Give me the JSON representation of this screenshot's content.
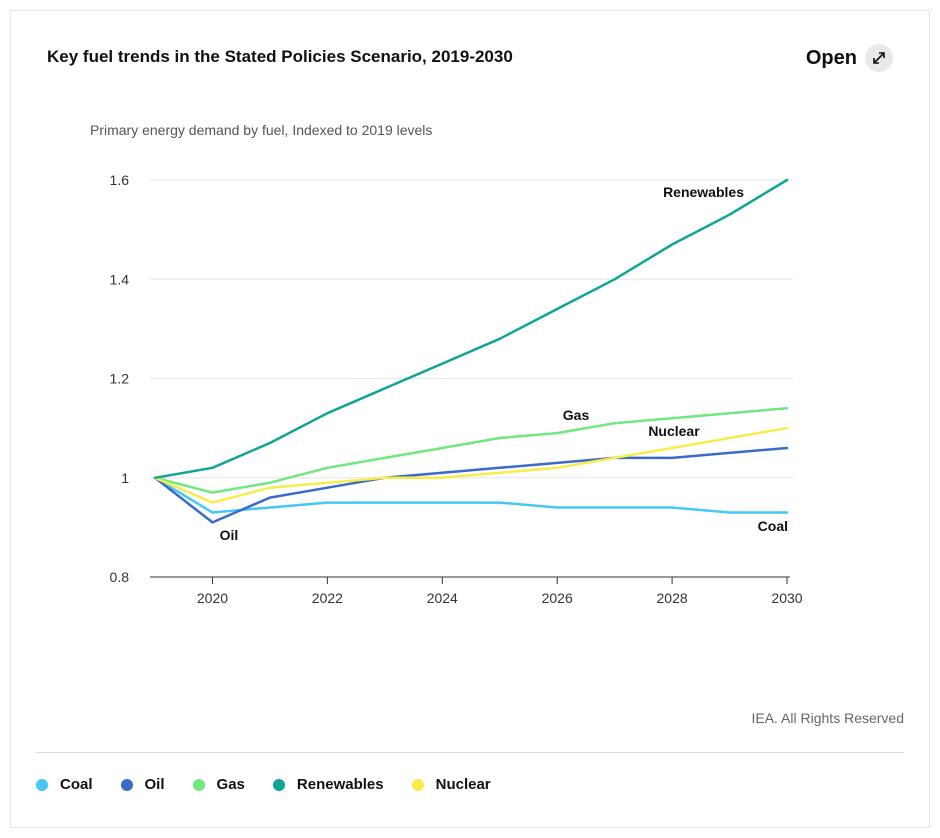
{
  "header": {
    "title": "Key fuel trends in the Stated Policies Scenario, 2019-2030",
    "open_label": "Open",
    "open_icon": "expand-arrow-icon"
  },
  "footer": {
    "credit": "IEA. All Rights Reserved"
  },
  "chart_data": {
    "type": "line",
    "title": "Key fuel trends in the Stated Policies Scenario, 2019-2030",
    "subtitle": "Primary energy demand by fuel, Indexed to 2019 levels",
    "xlabel": "",
    "ylabel": "",
    "x": [
      2019,
      2020,
      2021,
      2022,
      2023,
      2024,
      2025,
      2026,
      2027,
      2028,
      2029,
      2030
    ],
    "xlim": [
      2019,
      2030
    ],
    "ylim": [
      0.8,
      1.6
    ],
    "x_ticks": [
      2020,
      2022,
      2024,
      2026,
      2028,
      2030
    ],
    "y_ticks": [
      {
        "value": 0.8,
        "label": "0.8"
      },
      {
        "value": 1.0,
        "label": "1"
      },
      {
        "value": 1.2,
        "label": "1.2"
      },
      {
        "value": 1.4,
        "label": "1.4"
      },
      {
        "value": 1.6,
        "label": "1.6"
      }
    ],
    "grid": "horizontal",
    "legend_position": "bottom",
    "series": [
      {
        "name": "Coal",
        "color": "#45c8f5",
        "values": [
          1.0,
          0.93,
          0.94,
          0.95,
          0.95,
          0.95,
          0.95,
          0.94,
          0.94,
          0.94,
          0.93,
          0.93
        ]
      },
      {
        "name": "Oil",
        "color": "#3a6bc9",
        "values": [
          1.0,
          0.91,
          0.96,
          0.98,
          1.0,
          1.01,
          1.02,
          1.03,
          1.04,
          1.04,
          1.05,
          1.06
        ]
      },
      {
        "name": "Gas",
        "color": "#6ee87f",
        "values": [
          1.0,
          0.97,
          0.99,
          1.02,
          1.04,
          1.06,
          1.08,
          1.09,
          1.11,
          1.12,
          1.13,
          1.14
        ]
      },
      {
        "name": "Renewables",
        "color": "#0fa595",
        "values": [
          1.0,
          1.02,
          1.07,
          1.13,
          1.18,
          1.23,
          1.28,
          1.34,
          1.4,
          1.47,
          1.53,
          1.6
        ]
      },
      {
        "name": "Nuclear",
        "color": "#f8ec4a",
        "values": [
          1.0,
          0.95,
          0.98,
          0.99,
          1.0,
          1.0,
          1.01,
          1.02,
          1.04,
          1.06,
          1.08,
          1.1
        ]
      }
    ],
    "annotations": [
      {
        "text": "Renewables",
        "series": "Renewables"
      },
      {
        "text": "Gas",
        "series": "Gas"
      },
      {
        "text": "Nuclear",
        "series": "Nuclear"
      },
      {
        "text": "Oil",
        "series": "Oil"
      },
      {
        "text": "Coal",
        "series": "Coal"
      }
    ]
  }
}
